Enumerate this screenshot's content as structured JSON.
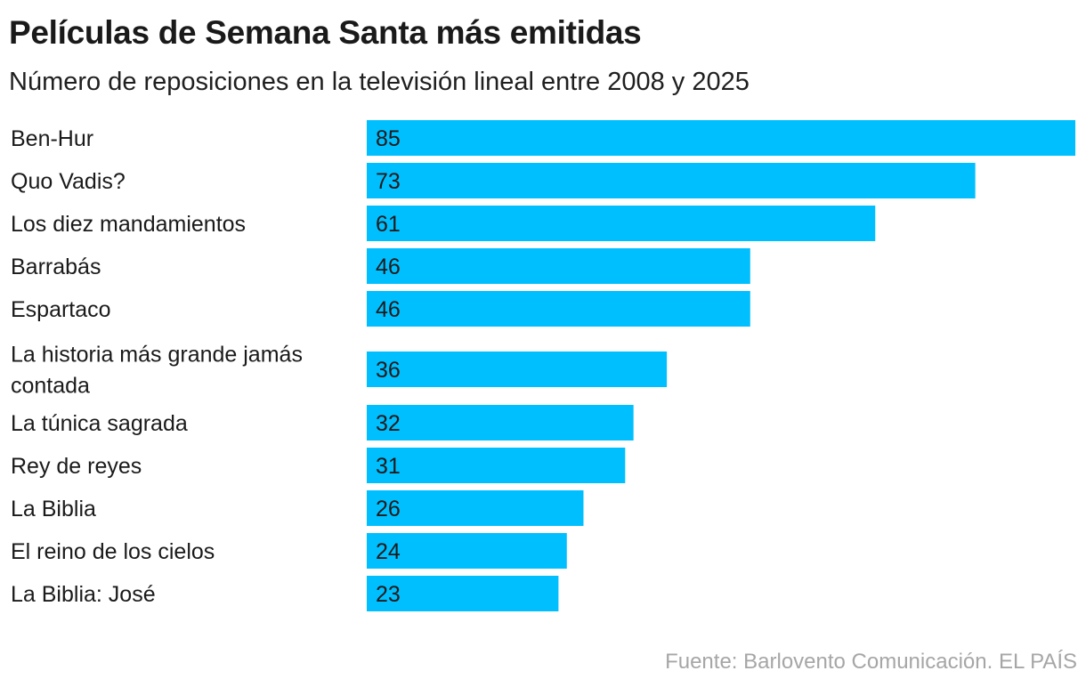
{
  "title": "Películas de Semana Santa más emitidas",
  "subtitle": "Número de reposiciones en la televisión lineal entre 2008 y 2025",
  "source": "Fuente: Barlovento Comunicación. EL PAÍS",
  "colors": {
    "bar": "#00bfff",
    "text": "#1a1a1a",
    "source": "#a6a6a6"
  },
  "chart_data": {
    "type": "bar",
    "orientation": "horizontal",
    "categories": [
      "Ben-Hur",
      "Quo Vadis?",
      "Los diez mandamientos",
      "Barrabás",
      "Espartaco",
      "La historia más grande jamás contada",
      "La túnica sagrada",
      "Rey de reyes",
      "La Biblia",
      "El reino de los cielos",
      "La Biblia: José"
    ],
    "values": [
      85,
      73,
      61,
      46,
      46,
      36,
      32,
      31,
      26,
      24,
      23
    ],
    "xlim": [
      0,
      85
    ],
    "data_labels": "inside-start",
    "grid": false,
    "legend": "none"
  }
}
